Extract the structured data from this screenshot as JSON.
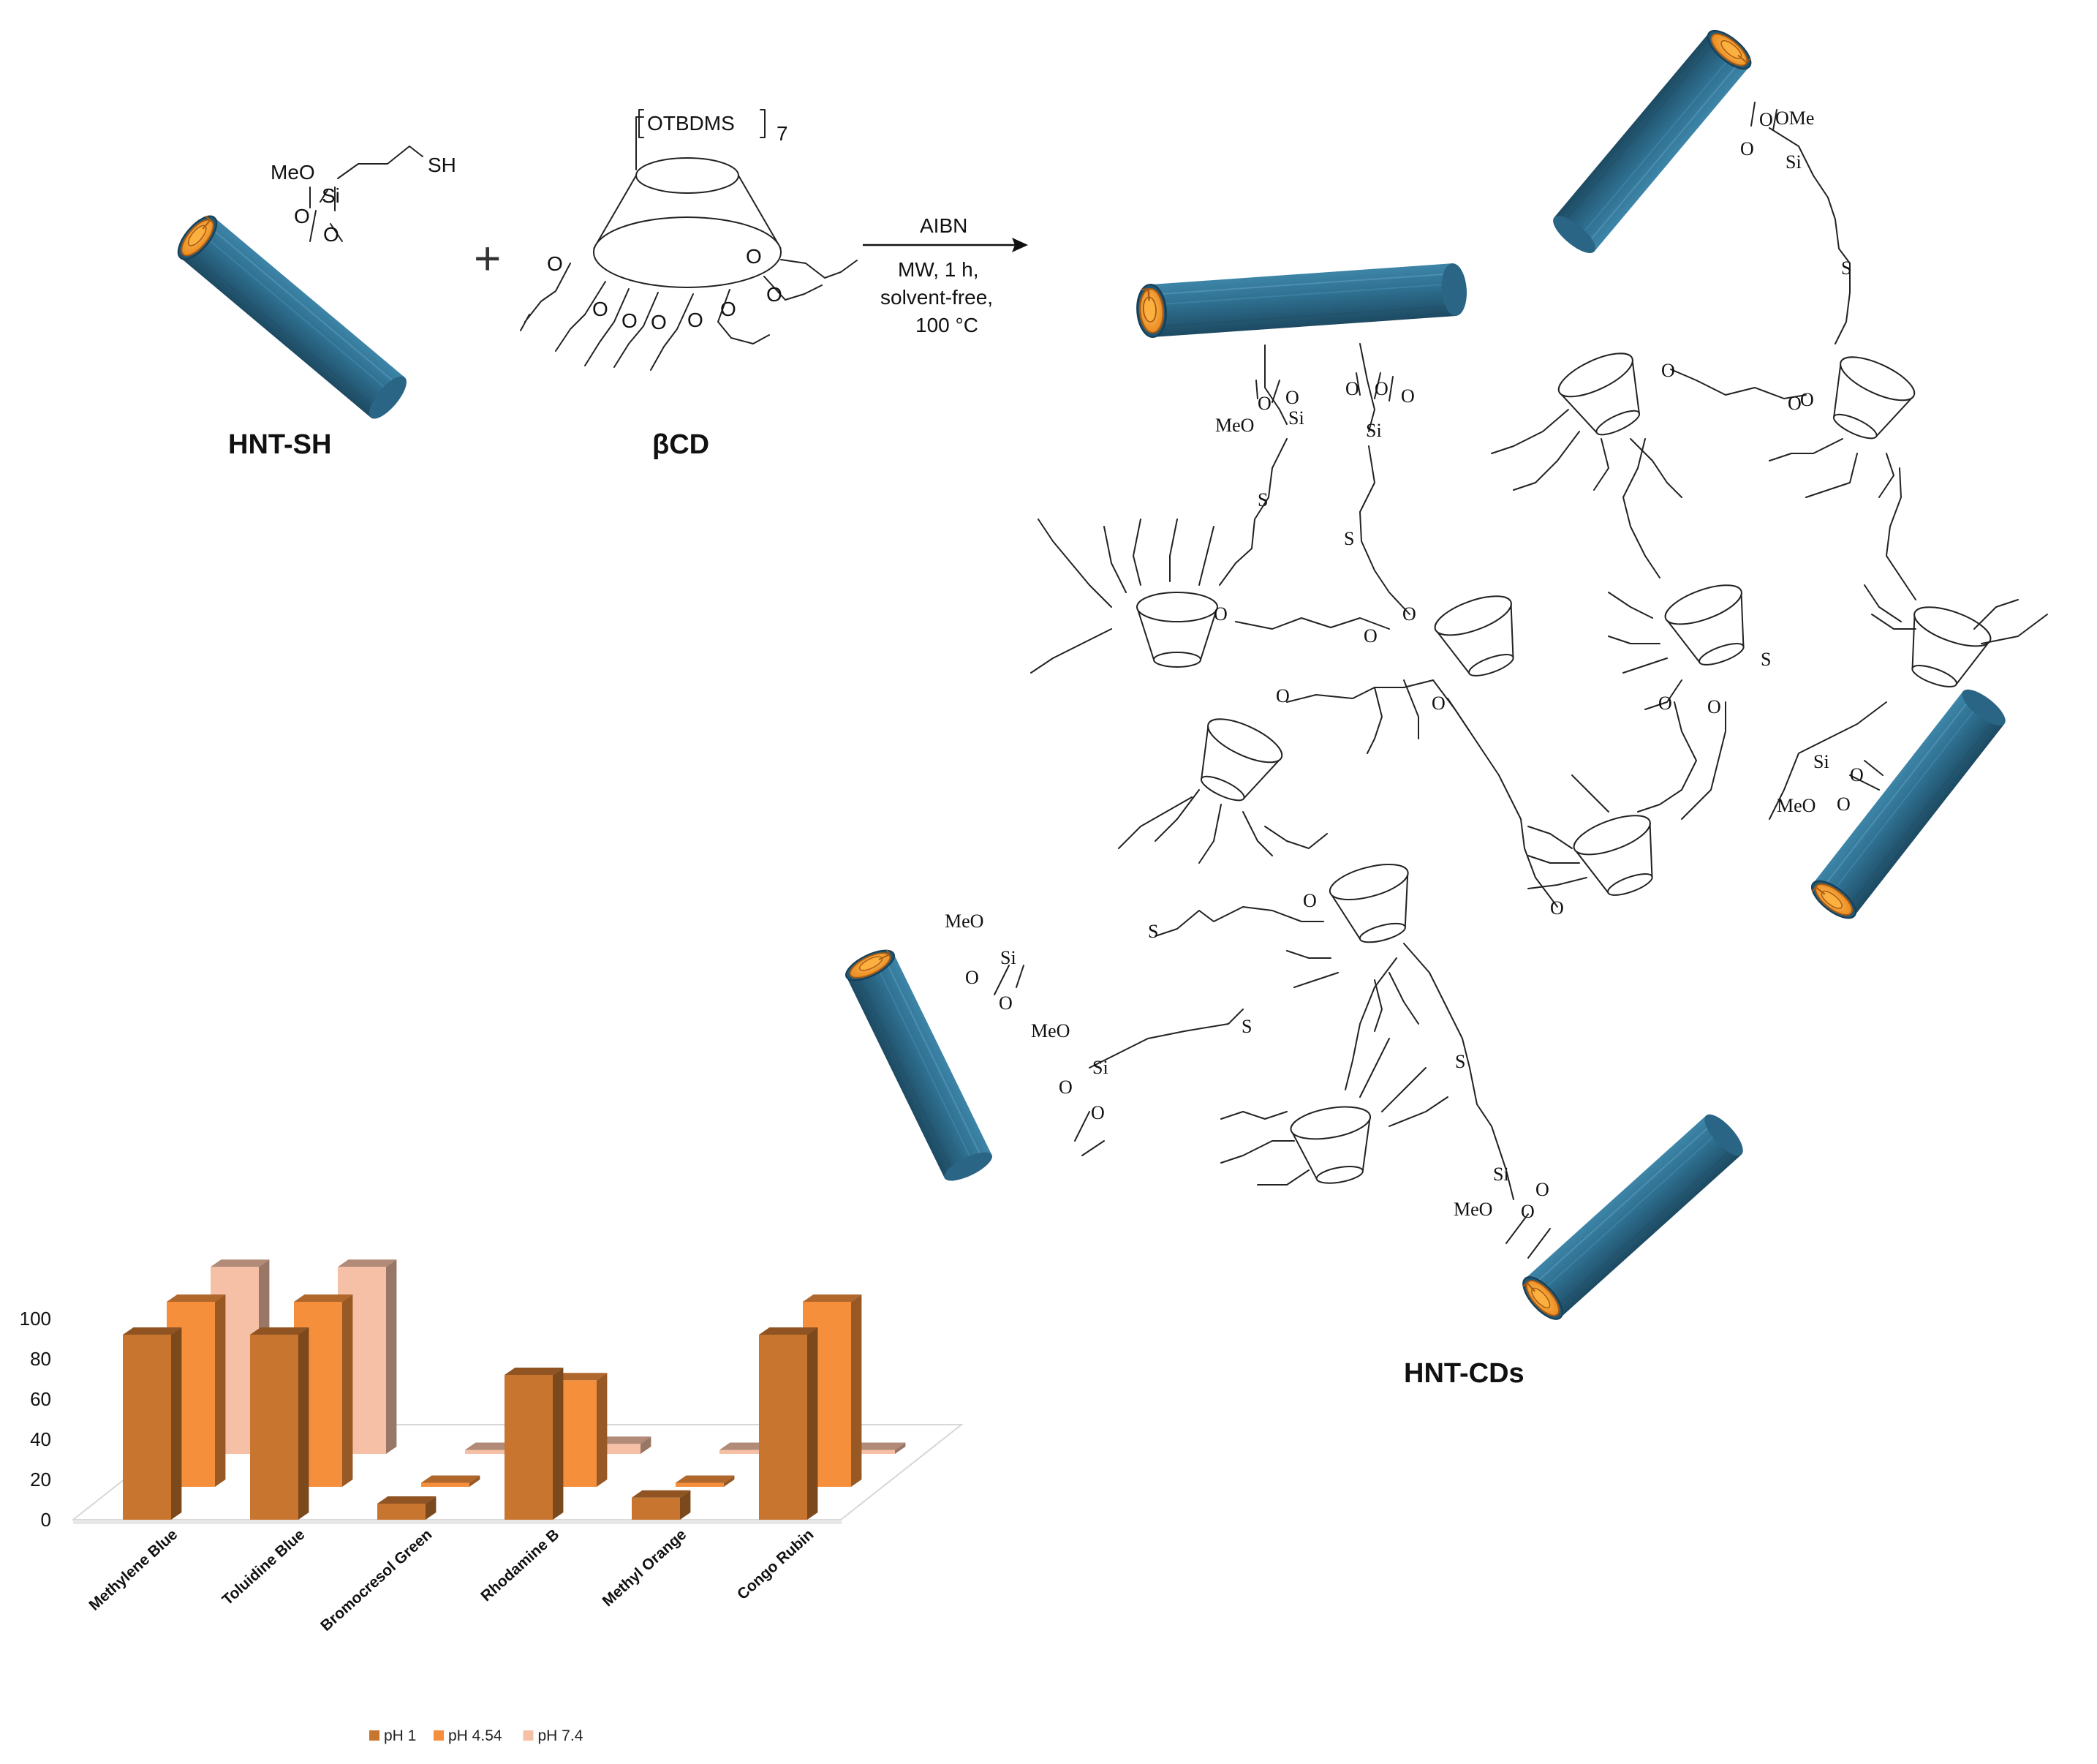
{
  "figure": {
    "labels": {
      "hnt_sh": "HNT-SH",
      "beta_cd": "βCD",
      "hnt_cds": "HNT-CDs",
      "plus": "+"
    },
    "reaction_conditions": {
      "reagent": "AIBN",
      "line1": "MW, 1 h,",
      "line2": "solvent-free,",
      "line3": "100 °C"
    },
    "chem_labels": {
      "meo": "MeO",
      "ome": "OMe",
      "si": "Si",
      "sh": "SH",
      "s": "S",
      "o": "O",
      "otbdms": "OTBDMS",
      "subscript_7": "7"
    },
    "colors": {
      "tube": "#2e6e8e",
      "tube_dark": "#1f4e66",
      "lumen": "#f39a2a",
      "lumen_edge": "#b35f10"
    }
  },
  "chart_data": {
    "type": "bar",
    "title": "",
    "xlabel": "",
    "ylabel": "",
    "ylim": [
      0,
      100
    ],
    "yticks": [
      0,
      20,
      40,
      60,
      80,
      100
    ],
    "categories": [
      "Methylene Blue",
      "Toluidine Blue",
      "Bromocresol Green",
      "Rhodamine B",
      "Methyl Orange",
      "Congo Rubin"
    ],
    "series": [
      {
        "name": "pH 1",
        "color": "#c8752f",
        "values": [
          92,
          92,
          8,
          72,
          11,
          92
        ]
      },
      {
        "name": "pH 4.54",
        "color": "#f58f3c",
        "values": [
          92,
          92,
          2,
          53,
          2,
          92
        ]
      },
      {
        "name": "pH 7.4",
        "color": "#f6c0a6",
        "values": [
          93,
          93,
          2,
          5,
          2,
          2
        ]
      }
    ],
    "legend_position": "bottom-center"
  }
}
